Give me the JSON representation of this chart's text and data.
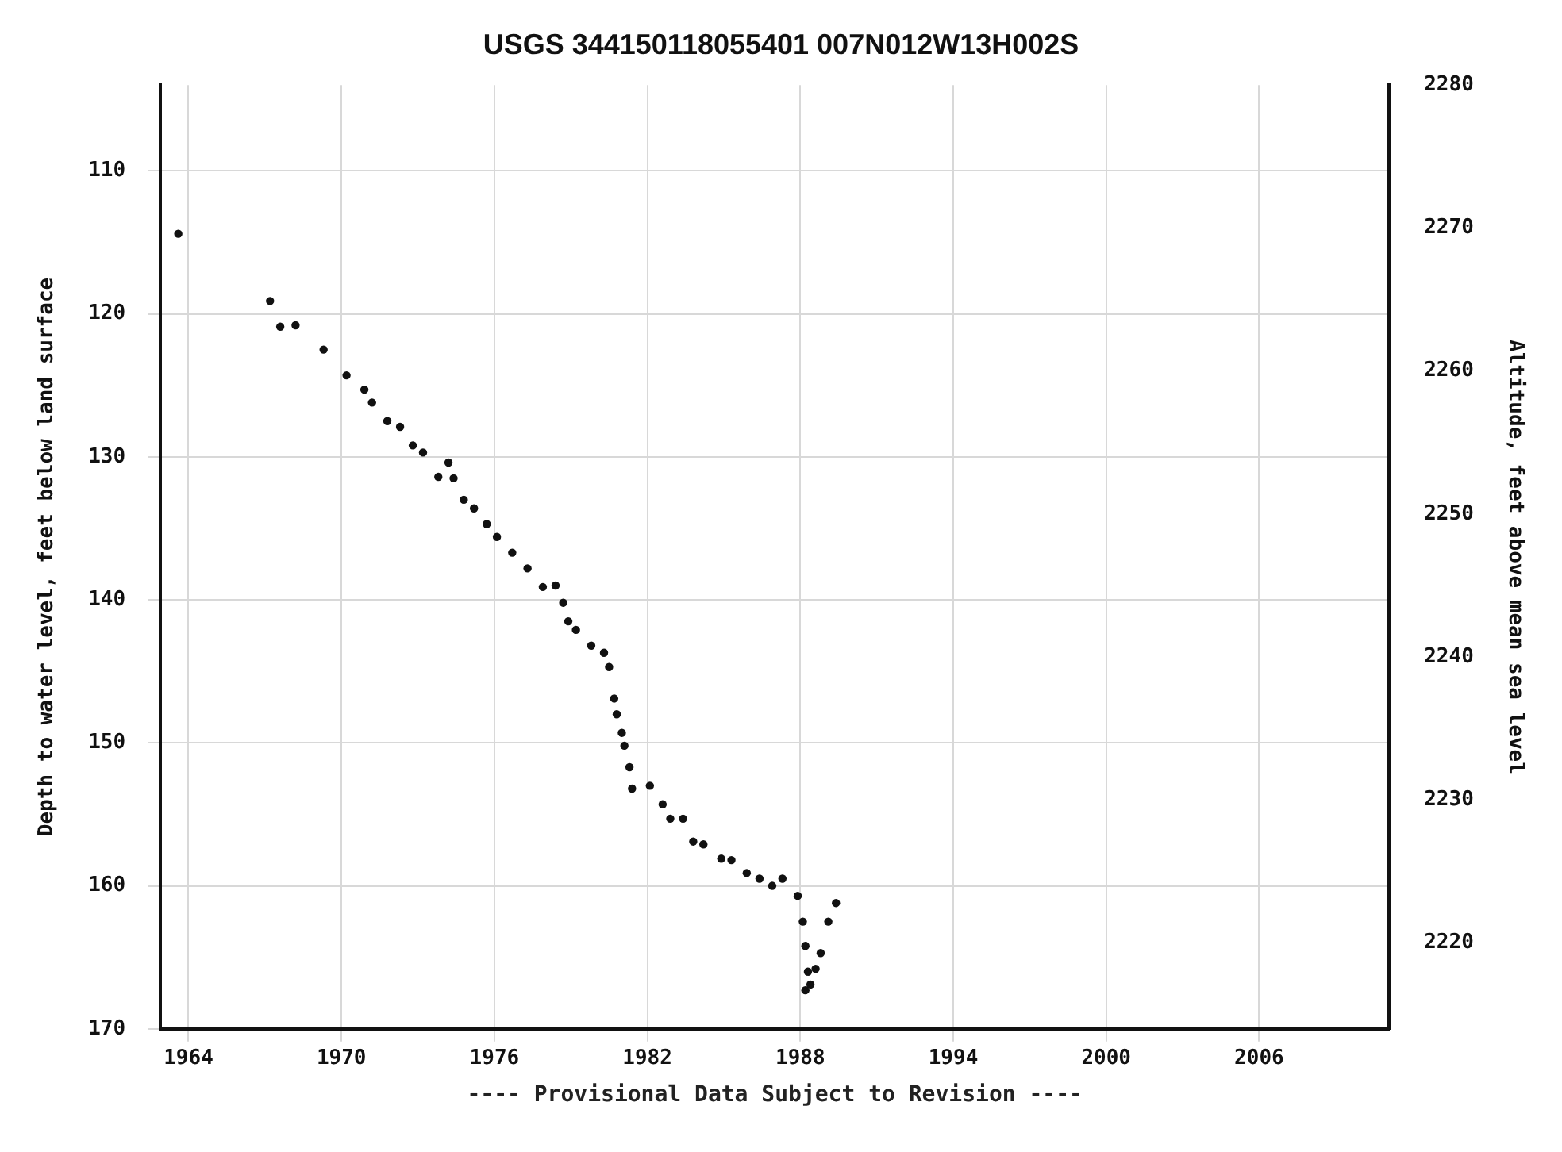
{
  "chart_data": {
    "type": "scatter",
    "title": "USGS 344150118055401 007N012W13H002S",
    "ylabel": "Depth to water level, feet below land surface",
    "y2label": "Altitude, feet above mean sea level",
    "annotations": [
      "---- Provisional Data Subject to Revision ----"
    ],
    "xlim": [
      1962.9,
      2011.1
    ],
    "xticks": [
      1964,
      1970,
      1976,
      1982,
      1988,
      1994,
      2000,
      2006
    ],
    "ylim": [
      170,
      104
    ],
    "yticks": [
      110,
      120,
      130,
      140,
      150,
      160,
      170
    ],
    "y2lim": [
      2214,
      2280
    ],
    "y2ticks": [
      2220,
      2230,
      2240,
      2250,
      2260,
      2270,
      2280
    ],
    "grid": true,
    "marker": "circle",
    "series": [
      {
        "color": "#111111",
        "x": [
          1963.6,
          1967.2,
          1967.6,
          1968.2,
          1969.3,
          1970.2,
          1970.9,
          1971.2,
          1971.8,
          1972.3,
          1972.8,
          1973.2,
          1973.8,
          1974.2,
          1974.4,
          1974.8,
          1975.2,
          1975.7,
          1976.1,
          1976.7,
          1977.3,
          1977.9,
          1978.4,
          1978.7,
          1978.9,
          1979.2,
          1979.8,
          1980.3,
          1980.5,
          1980.7,
          1980.8,
          1981.0,
          1981.1,
          1981.3,
          1981.4,
          1982.1,
          1982.6,
          1982.9,
          1983.4,
          1983.8,
          1984.2,
          1984.9,
          1985.3,
          1985.9,
          1986.4,
          1986.9,
          1987.3,
          1987.9,
          1988.1,
          1988.2,
          1988.3,
          1988.2,
          1988.4,
          1988.6,
          1988.8,
          1989.1,
          1989.4
        ],
        "values": [
          114.4,
          119.1,
          120.9,
          120.8,
          122.5,
          124.3,
          125.3,
          126.2,
          127.5,
          127.9,
          129.2,
          129.7,
          131.4,
          130.4,
          131.5,
          133.0,
          133.6,
          134.7,
          135.6,
          136.7,
          137.8,
          139.1,
          139.0,
          140.2,
          141.5,
          142.1,
          143.2,
          143.7,
          144.7,
          146.9,
          148.0,
          149.3,
          150.2,
          151.7,
          153.2,
          153.0,
          154.3,
          155.3,
          155.3,
          156.9,
          157.1,
          158.1,
          158.2,
          159.1,
          159.5,
          160.0,
          159.5,
          160.7,
          162.5,
          164.2,
          166.0,
          167.3,
          166.9,
          165.8,
          164.7,
          162.5,
          161.2
        ]
      }
    ]
  }
}
